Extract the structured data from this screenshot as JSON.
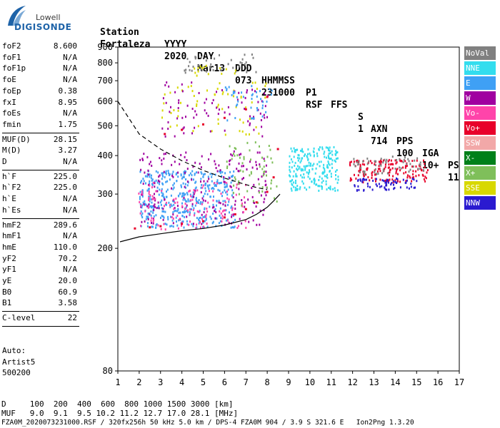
{
  "logo": {
    "line1": "Lowell",
    "line2": "DIGISONDE"
  },
  "header": {
    "labels": [
      "Station",
      "YYYY",
      "DAY",
      "DDD",
      "HHMMSS",
      "P1",
      "FFS",
      "S",
      "AXN",
      "PPS",
      "IGA",
      "PS"
    ],
    "values": [
      "Fortaleza",
      "2020",
      "Mar13",
      "073",
      "231000",
      "RSF",
      "",
      "1",
      "714",
      "100",
      "10+",
      "11"
    ]
  },
  "params": {
    "group1": [
      {
        "label": "foF2",
        "value": "8.600"
      },
      {
        "label": "foF1",
        "value": "N/A"
      },
      {
        "label": "foF1p",
        "value": "N/A"
      },
      {
        "label": "foE",
        "value": "N/A"
      },
      {
        "label": "foEp",
        "value": "0.38"
      },
      {
        "label": "fxI",
        "value": "8.95"
      },
      {
        "label": "foEs",
        "value": "N/A"
      },
      {
        "label": "fmin",
        "value": "1.75"
      }
    ],
    "group2": [
      {
        "label": "MUF(D)",
        "value": "28.15"
      },
      {
        "label": "M(D)",
        "value": "3.27"
      },
      {
        "label": "D",
        "value": "N/A"
      }
    ],
    "group3": [
      {
        "label": "h`F",
        "value": "225.0"
      },
      {
        "label": "h`F2",
        "value": "225.0"
      },
      {
        "label": "h`E",
        "value": "N/A"
      },
      {
        "label": "h`Es",
        "value": "N/A"
      }
    ],
    "group4": [
      {
        "label": "hmF2",
        "value": "289.6"
      },
      {
        "label": "hmF1",
        "value": "N/A"
      },
      {
        "label": "hmE",
        "value": "110.0"
      },
      {
        "label": "yF2",
        "value": "70.2"
      },
      {
        "label": "yF1",
        "value": "N/A"
      },
      {
        "label": "yE",
        "value": "20.0"
      },
      {
        "label": "B0",
        "value": "60.9"
      },
      {
        "label": "B1",
        "value": "3.58"
      }
    ],
    "group5": [
      {
        "label": "C-level",
        "value": "22"
      }
    ]
  },
  "autoscale": {
    "line1": "Auto:",
    "line2": "Artist5",
    "line3": "500200"
  },
  "legend": [
    {
      "name": "NoVal",
      "color": "#808080"
    },
    {
      "name": "NNE",
      "color": "#33ddee"
    },
    {
      "name": "E",
      "color": "#3fa0f5"
    },
    {
      "name": "W",
      "color": "#a000a0"
    },
    {
      "name": "Vo-",
      "color": "#ff44aa"
    },
    {
      "name": "Vo+",
      "color": "#e8002a"
    },
    {
      "name": "SSW",
      "color": "#f2a8a8"
    },
    {
      "name": "X-",
      "color": "#00801a"
    },
    {
      "name": "X+",
      "color": "#7fbf5a"
    },
    {
      "name": "SSE",
      "color": "#d8d800"
    },
    {
      "name": "NNW",
      "color": "#2a1ad0"
    }
  ],
  "bottom": {
    "d_row": "D     100  200  400  600  800 1000 1500 3000 [km]",
    "muf_row": "MUF   9.0  9.1  9.5 10.2 11.2 12.7 17.0 28.1 [MHz]",
    "footer": "FZA0M_2020073231000.RSF / 320fx256h 50 kHz 5.0 km / DPS-4 FZA0M 904 / 3.9 S 321.6 E   Ion2Png 1.3.20"
  },
  "chart_data": {
    "type": "scatter",
    "title": "",
    "xlabel": "",
    "ylabel": "",
    "xlim": [
      1,
      17
    ],
    "ylim": [
      80,
      900
    ],
    "y_scale": "log",
    "x_ticks": [
      "1",
      "2",
      "3",
      "4",
      "5",
      "6",
      "7",
      "8",
      "9",
      "10",
      "11",
      "12",
      "13",
      "14",
      "15",
      "16",
      "17"
    ],
    "y_ticks": [
      "900",
      "800",
      "700",
      "600",
      "500",
      "400",
      "300",
      "200",
      "80"
    ],
    "y_tick_values": [
      900,
      800,
      700,
      600,
      500,
      400,
      300,
      200,
      80
    ],
    "grid": false,
    "legend_position": "right",
    "traces": [
      {
        "name": "true-height profile",
        "style": "solid",
        "color": "#000000",
        "x": [
          1.1,
          2,
          3,
          4,
          5,
          6,
          7,
          7.5,
          8,
          8.3,
          8.5,
          8.6
        ],
        "y": [
          210,
          218,
          223,
          228,
          232,
          238,
          248,
          258,
          272,
          285,
          295,
          300
        ]
      },
      {
        "name": "MUF curve",
        "style": "dashed",
        "color": "#000000",
        "x": [
          1,
          2,
          3,
          4,
          5,
          6,
          7,
          7.5,
          8
        ],
        "y": [
          600,
          470,
          420,
          385,
          358,
          338,
          322,
          315,
          310
        ]
      },
      {
        "name": "F2 trace",
        "style": "markers",
        "color": "#e8002a",
        "x": [
          1.8,
          2.5,
          3,
          4,
          5,
          6,
          6.5,
          7,
          7.5,
          8,
          8.3,
          8.5
        ],
        "y": [
          232,
          234,
          236,
          240,
          245,
          252,
          258,
          268,
          282,
          305,
          340,
          420
        ]
      },
      {
        "name": "second-hop",
        "style": "markers",
        "color": "#e8002a",
        "x": [
          3.2,
          4,
          5,
          6,
          7,
          8
        ],
        "y": [
          470,
          485,
          505,
          530,
          565,
          620
        ]
      }
    ],
    "echo_clusters": [
      {
        "color": "#3fa0f5",
        "x": [
          2,
          6.5
        ],
        "y": [
          235,
          360
        ],
        "count": 420
      },
      {
        "color": "#a000a0",
        "x": [
          2,
          8
        ],
        "y": [
          240,
          420
        ],
        "count": 200
      },
      {
        "color": "#ff44aa",
        "x": [
          1.8,
          7
        ],
        "y": [
          232,
          330
        ],
        "count": 120
      },
      {
        "color": "#33ddee",
        "x": [
          9,
          11.3
        ],
        "y": [
          310,
          430
        ],
        "count": 220
      },
      {
        "color": "#e8002a",
        "x": [
          11.8,
          15.5
        ],
        "y": [
          330,
          390
        ],
        "count": 160
      },
      {
        "color": "#2a1ad0",
        "x": [
          12,
          15
        ],
        "y": [
          310,
          340
        ],
        "count": 70
      },
      {
        "color": "#808080",
        "x": [
          12,
          15.5
        ],
        "y": [
          350,
          400
        ],
        "count": 60
      },
      {
        "color": "#7fbf5a",
        "x": [
          6,
          8.5
        ],
        "y": [
          270,
          450
        ],
        "count": 60
      },
      {
        "color": "#d8d800",
        "x": [
          3,
          8
        ],
        "y": [
          460,
          700
        ],
        "count": 60
      },
      {
        "color": "#a000a0",
        "x": [
          3,
          8
        ],
        "y": [
          460,
          700
        ],
        "count": 80
      },
      {
        "color": "#3fa0f5",
        "x": [
          6,
          8.3
        ],
        "y": [
          520,
          690
        ],
        "count": 40
      },
      {
        "color": "#808080",
        "x": [
          4,
          7.5
        ],
        "y": [
          740,
          860
        ],
        "count": 40
      },
      {
        "color": "#d8d800",
        "x": [
          4.5,
          6.5
        ],
        "y": [
          730,
          790
        ],
        "count": 15
      }
    ]
  }
}
